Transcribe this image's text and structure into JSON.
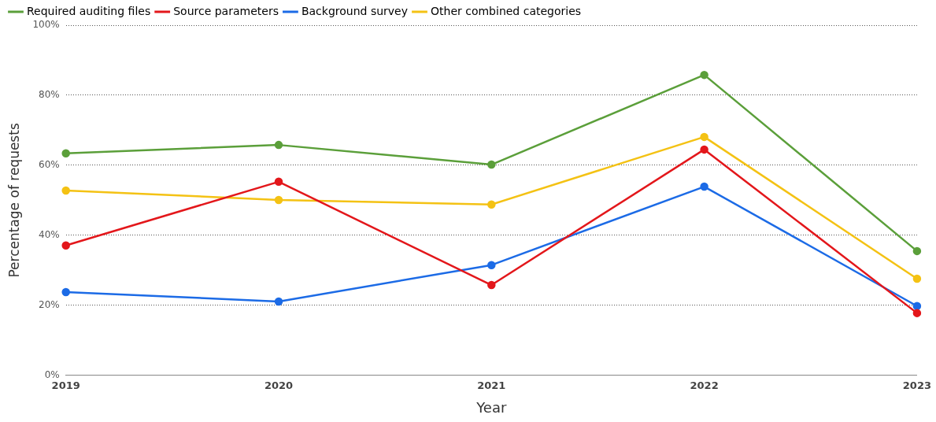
{
  "chart_data": {
    "type": "line",
    "xlabel": "Year",
    "ylabel": "Percentage of requests",
    "categories": [
      "2019",
      "2020",
      "2021",
      "2022",
      "2023"
    ],
    "series": [
      {
        "name": "Required auditing files",
        "color": "#5b9f3a",
        "values": [
          63.4,
          65.8,
          60.2,
          85.8,
          35.5
        ]
      },
      {
        "name": "Source parameters",
        "color": "#e3171b",
        "values": [
          37.1,
          55.3,
          25.8,
          64.5,
          17.8
        ]
      },
      {
        "name": "Background survey",
        "color": "#1c6be6",
        "values": [
          23.8,
          21.1,
          31.5,
          53.9,
          19.8
        ]
      },
      {
        "name": "Other combined categories",
        "color": "#f4c214",
        "values": [
          52.8,
          50.1,
          48.8,
          68.1,
          27.6
        ]
      }
    ],
    "ylim": [
      0,
      100
    ],
    "yticks": [
      {
        "value": 0,
        "label": "0%"
      },
      {
        "value": 20,
        "label": "20%"
      },
      {
        "value": 40,
        "label": "40%"
      },
      {
        "value": 60,
        "label": "60%"
      },
      {
        "value": 80,
        "label": "80%"
      },
      {
        "value": 100,
        "label": "100%"
      }
    ],
    "grid": "y",
    "legend": "top left",
    "marker": "circle",
    "line_style": "solid"
  }
}
